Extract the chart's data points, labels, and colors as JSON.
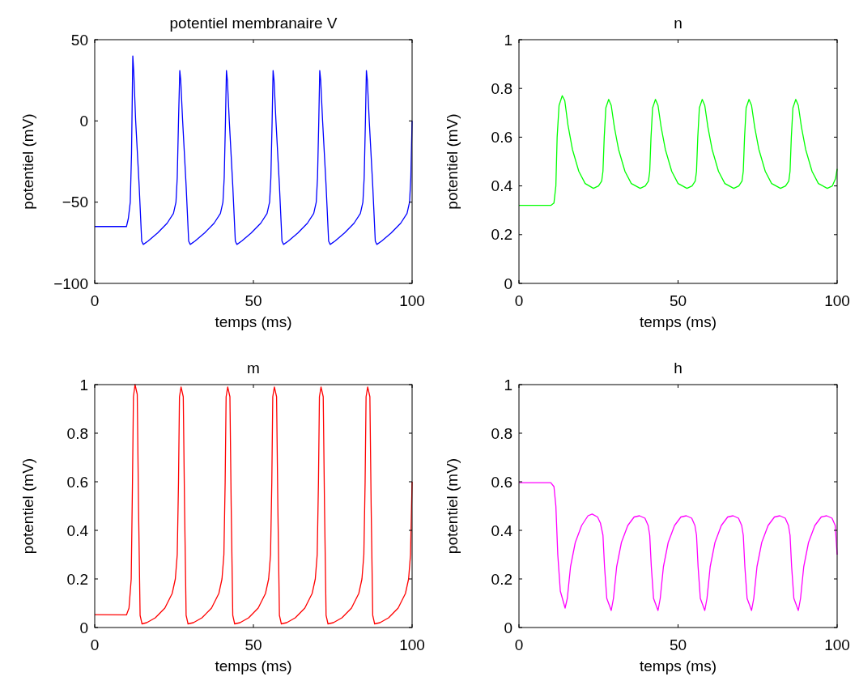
{
  "chart_data": [
    {
      "type": "line",
      "title": "potentiel membranaire V",
      "xlabel": "temps (ms)",
      "ylabel": "potentiel (mV)",
      "xlim": [
        0,
        100
      ],
      "ylim": [
        -100,
        50
      ],
      "xticks": [
        0,
        50,
        100
      ],
      "yticks": [
        {
          "value": -100,
          "label": "−100"
        },
        {
          "value": -50,
          "label": "−50"
        },
        0,
        50
      ],
      "x": [
        0,
        10,
        10.6,
        11.2,
        11.6,
        12.0,
        12.3,
        12.9,
        14.0,
        14.8,
        15.3,
        16.8,
        19.8,
        22.8,
        24.8,
        25.6,
        26.0,
        26.4,
        26.8,
        27.1,
        27.7,
        28.8,
        29.6,
        30.1,
        31.6,
        34.6,
        37.6,
        39.6,
        40.4,
        40.8,
        41.2,
        41.5,
        41.8,
        42.4,
        43.5,
        44.3,
        44.8,
        46.3,
        49.3,
        52.3,
        54.3,
        55.1,
        55.5,
        55.9,
        56.2,
        56.5,
        57.1,
        58.2,
        59.0,
        59.5,
        61.0,
        64.0,
        67.0,
        69.0,
        69.8,
        70.2,
        70.6,
        70.9,
        71.2,
        71.8,
        72.9,
        73.7,
        74.2,
        75.7,
        78.7,
        81.7,
        83.7,
        84.5,
        84.9,
        85.3,
        85.6,
        85.9,
        86.5,
        87.6,
        88.4,
        88.9,
        90.4,
        93.4,
        96.4,
        98.4,
        99.2,
        99.6,
        100
      ],
      "series": [
        {
          "color": "#0000ff",
          "values": [
            -65,
            -65,
            -60,
            -50,
            -20,
            40,
            30,
            0,
            -40,
            -74,
            -76,
            -74,
            -69,
            -63,
            -57,
            -50,
            -35,
            0,
            31,
            25,
            0,
            -40,
            -74,
            -76,
            -74,
            -69,
            -63,
            -57,
            -50,
            -35,
            0,
            31,
            25,
            0,
            -40,
            -74,
            -76,
            -74,
            -69,
            -63,
            -57,
            -50,
            -35,
            0,
            31,
            25,
            0,
            -40,
            -74,
            -76,
            -74,
            -69,
            -63,
            -57,
            -50,
            -35,
            0,
            31,
            25,
            0,
            -40,
            -74,
            -76,
            -74,
            -69,
            -63,
            -57,
            -50,
            -35,
            0,
            31,
            25,
            0,
            -40,
            -74,
            -76,
            -74,
            -69,
            -63,
            -57,
            -50,
            -35,
            0
          ]
        }
      ]
    },
    {
      "type": "line",
      "title": "n",
      "xlabel": "temps (ms)",
      "ylabel": "potentiel (mV)",
      "xlim": [
        0,
        100
      ],
      "ylim": [
        0,
        1
      ],
      "xticks": [
        0,
        50,
        100
      ],
      "yticks": [
        0,
        0.2,
        0.4,
        0.6,
        0.8,
        1
      ],
      "x": [
        0,
        10,
        11,
        11.6,
        12.0,
        12.6,
        13.6,
        14.4,
        15.4,
        16.8,
        18.8,
        20.8,
        23.4,
        25.0,
        26.0,
        26.4,
        26.8,
        27.3,
        28.2,
        29.0,
        30.0,
        31.3,
        33.3,
        35.3,
        38.1,
        39.7,
        40.7,
        41.1,
        41.5,
        42.0,
        42.9,
        43.7,
        44.7,
        46.0,
        48.0,
        50.0,
        52.8,
        54.4,
        55.4,
        55.8,
        56.2,
        56.7,
        57.6,
        58.4,
        59.4,
        60.7,
        62.7,
        64.7,
        67.5,
        69.1,
        70.1,
        70.5,
        70.9,
        71.4,
        72.3,
        73.1,
        74.1,
        75.4,
        77.4,
        79.4,
        82.2,
        83.8,
        84.8,
        85.2,
        85.6,
        86.1,
        87.0,
        87.8,
        88.8,
        90.1,
        92.1,
        94.1,
        96.9,
        98.5,
        99.5,
        100
      ],
      "series": [
        {
          "color": "#00ff00",
          "values": [
            0.32,
            0.32,
            0.33,
            0.4,
            0.6,
            0.73,
            0.77,
            0.75,
            0.65,
            0.55,
            0.46,
            0.41,
            0.39,
            0.4,
            0.42,
            0.46,
            0.6,
            0.72,
            0.755,
            0.73,
            0.64,
            0.55,
            0.46,
            0.41,
            0.39,
            0.4,
            0.42,
            0.46,
            0.6,
            0.72,
            0.755,
            0.73,
            0.64,
            0.55,
            0.46,
            0.41,
            0.39,
            0.4,
            0.42,
            0.46,
            0.6,
            0.72,
            0.755,
            0.73,
            0.64,
            0.55,
            0.46,
            0.41,
            0.39,
            0.4,
            0.42,
            0.46,
            0.6,
            0.72,
            0.755,
            0.73,
            0.64,
            0.55,
            0.46,
            0.41,
            0.39,
            0.4,
            0.42,
            0.46,
            0.6,
            0.72,
            0.755,
            0.73,
            0.64,
            0.55,
            0.46,
            0.41,
            0.39,
            0.4,
            0.43,
            0.47
          ]
        }
      ]
    },
    {
      "type": "line",
      "title": "m",
      "xlabel": "temps (ms)",
      "ylabel": "potentiel (mV)",
      "xlim": [
        0,
        100
      ],
      "ylim": [
        0,
        1
      ],
      "xticks": [
        0,
        50,
        100
      ],
      "yticks": [
        0,
        0.2,
        0.4,
        0.6,
        0.8,
        1
      ],
      "x": [
        0,
        10,
        10.8,
        11.5,
        11.9,
        12.2,
        12.7,
        13.4,
        13.8,
        14.3,
        14.9,
        16.4,
        19.1,
        22.1,
        24.4,
        25.4,
        26.0,
        26.4,
        26.7,
        27.2,
        27.9,
        28.3,
        28.8,
        29.4,
        31.1,
        33.8,
        36.8,
        39.1,
        40.1,
        40.7,
        41.1,
        41.4,
        41.9,
        42.6,
        43.0,
        43.5,
        44.1,
        45.8,
        48.5,
        51.5,
        53.8,
        54.8,
        55.4,
        55.8,
        56.1,
        56.6,
        57.3,
        57.7,
        58.2,
        58.8,
        60.5,
        63.2,
        66.2,
        68.5,
        69.5,
        70.1,
        70.5,
        70.8,
        71.3,
        72.0,
        72.4,
        72.9,
        73.5,
        75.2,
        77.9,
        80.9,
        83.2,
        84.2,
        84.8,
        85.2,
        85.5,
        86.0,
        86.7,
        87.1,
        87.6,
        88.2,
        89.9,
        92.6,
        95.6,
        97.9,
        98.9,
        99.5,
        100
      ],
      "series": [
        {
          "color": "#ff0000",
          "values": [
            0.053,
            0.052,
            0.08,
            0.2,
            0.6,
            0.95,
            1.0,
            0.96,
            0.5,
            0.05,
            0.015,
            0.02,
            0.04,
            0.08,
            0.14,
            0.2,
            0.3,
            0.6,
            0.95,
            0.99,
            0.95,
            0.5,
            0.05,
            0.015,
            0.02,
            0.04,
            0.08,
            0.14,
            0.2,
            0.3,
            0.6,
            0.95,
            0.99,
            0.95,
            0.5,
            0.05,
            0.015,
            0.02,
            0.04,
            0.08,
            0.14,
            0.2,
            0.3,
            0.6,
            0.95,
            0.99,
            0.95,
            0.5,
            0.05,
            0.015,
            0.02,
            0.04,
            0.08,
            0.14,
            0.2,
            0.3,
            0.6,
            0.95,
            0.99,
            0.95,
            0.5,
            0.05,
            0.015,
            0.02,
            0.04,
            0.08,
            0.14,
            0.2,
            0.3,
            0.6,
            0.95,
            0.99,
            0.95,
            0.5,
            0.05,
            0.015,
            0.02,
            0.04,
            0.08,
            0.14,
            0.2,
            0.3,
            0.6
          ]
        }
      ]
    },
    {
      "type": "line",
      "title": "h",
      "xlabel": "temps (ms)",
      "ylabel": "potentiel (mV)",
      "xlim": [
        0,
        100
      ],
      "ylim": [
        0,
        1
      ],
      "xticks": [
        0,
        50,
        100
      ],
      "yticks": [
        0,
        0.2,
        0.4,
        0.6,
        0.8,
        1
      ],
      "x": [
        0,
        10,
        11,
        11.6,
        12.2,
        13,
        14.5,
        15.2,
        16.2,
        17.7,
        19.7,
        21.7,
        23,
        24.7,
        25.6,
        26.4,
        26.9,
        27.6,
        29.0,
        29.7,
        30.7,
        32.2,
        34.2,
        36.2,
        37.9,
        39.6,
        40.6,
        41.1,
        41.6,
        42.3,
        43.7,
        44.4,
        45.4,
        46.9,
        48.9,
        50.9,
        52.6,
        54.3,
        55.3,
        55.8,
        56.3,
        57.0,
        58.4,
        59.1,
        60.1,
        61.6,
        63.6,
        65.6,
        67.3,
        69.0,
        70.0,
        70.5,
        71.0,
        71.7,
        73.1,
        73.8,
        74.8,
        76.3,
        78.3,
        80.3,
        82.0,
        83.7,
        84.7,
        85.2,
        85.7,
        86.4,
        87.8,
        88.5,
        89.5,
        91.0,
        93.0,
        95.0,
        96.7,
        98.4,
        99.4,
        100
      ],
      "series": [
        {
          "color": "#ff00ff",
          "values": [
            0.596,
            0.596,
            0.58,
            0.5,
            0.3,
            0.15,
            0.08,
            0.12,
            0.25,
            0.35,
            0.42,
            0.46,
            0.467,
            0.455,
            0.43,
            0.38,
            0.25,
            0.12,
            0.07,
            0.12,
            0.25,
            0.35,
            0.42,
            0.455,
            0.46,
            0.45,
            0.42,
            0.38,
            0.25,
            0.12,
            0.07,
            0.12,
            0.25,
            0.35,
            0.42,
            0.455,
            0.46,
            0.45,
            0.42,
            0.38,
            0.25,
            0.12,
            0.07,
            0.12,
            0.25,
            0.35,
            0.42,
            0.455,
            0.46,
            0.45,
            0.42,
            0.38,
            0.25,
            0.12,
            0.07,
            0.12,
            0.25,
            0.35,
            0.42,
            0.455,
            0.46,
            0.45,
            0.42,
            0.38,
            0.25,
            0.12,
            0.07,
            0.12,
            0.25,
            0.35,
            0.42,
            0.455,
            0.46,
            0.45,
            0.42,
            0.3
          ]
        }
      ]
    }
  ]
}
